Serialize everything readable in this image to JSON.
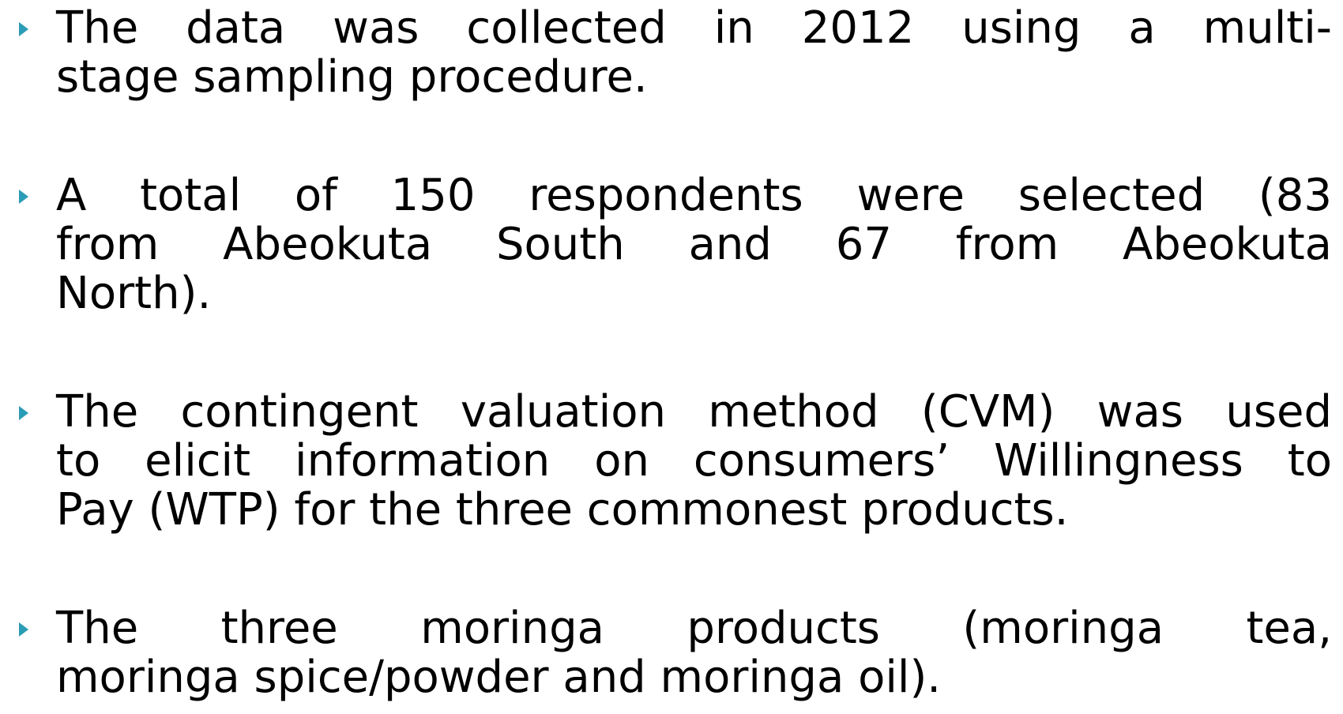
{
  "bullets": [
    [
      "The data was collected in 2012 using a multi-",
      "stage sampling procedure."
    ],
    [
      "A total of 150 respondents were selected (83",
      "from Abeokuta South and 67 from Abeokuta",
      "North)."
    ],
    [
      "The contingent valuation method (CVM) was used",
      "to elicit information on consumers’ Willingness to",
      "Pay (WTP) for the three commonest products."
    ],
    [
      "The three moringa products (moringa tea,",
      "moringa spice/powder and moringa oil)."
    ]
  ]
}
